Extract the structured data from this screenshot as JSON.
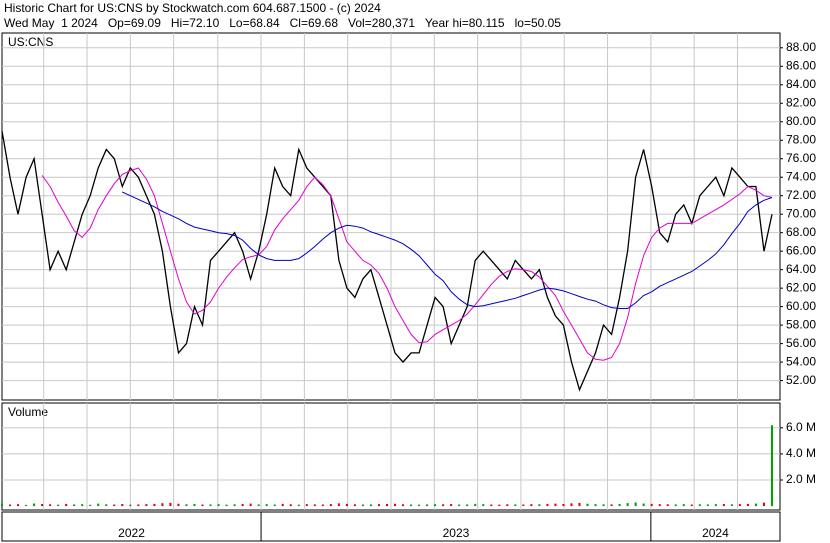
{
  "header": {
    "line1": "Historic Chart for US:CNS by Stockwatch.com 604.687.1500 - (c) 2024",
    "line2": "Wed May  1 2024   Op=69.09   Hi=72.10   Lo=68.84   Cl=69.68   Vol=280,371   Year hi=80.115   lo=50.05"
  },
  "chart_data": [
    {
      "type": "line",
      "title": "US:CNS",
      "xlim": [
        0,
        97
      ],
      "xticks": [
        5.2,
        10.6,
        16,
        21.4,
        26.9,
        32.3,
        37.7,
        43.1,
        48.5,
        53.9,
        59.3,
        64.7,
        70.1,
        75.5,
        80.9,
        86.3,
        91.7
      ],
      "period_starts": [
        32.3,
        80.9
      ],
      "period_labels": [
        "2022",
        "2023",
        "2024"
      ],
      "ylim": [
        49.9,
        89.6
      ],
      "yticks": [
        {
          "value": 52,
          "label": "52.00"
        },
        {
          "value": 54,
          "label": "54.00"
        },
        {
          "value": 56,
          "label": "56.00"
        },
        {
          "value": 58,
          "label": "58.00"
        },
        {
          "value": 60,
          "label": "60.00"
        },
        {
          "value": 62,
          "label": "62.00"
        },
        {
          "value": 64,
          "label": "64.00"
        },
        {
          "value": 66,
          "label": "66.00"
        },
        {
          "value": 68,
          "label": "68.00"
        },
        {
          "value": 70,
          "label": "70.00"
        },
        {
          "value": 72,
          "label": "72.00"
        },
        {
          "value": 74,
          "label": "74.00"
        },
        {
          "value": 76,
          "label": "76.00"
        },
        {
          "value": 78,
          "label": "78.00"
        },
        {
          "value": 80,
          "label": "80.00"
        },
        {
          "value": 82,
          "label": "82.00"
        },
        {
          "value": 84,
          "label": "84.00"
        },
        {
          "value": 86,
          "label": "86.00"
        },
        {
          "value": 88,
          "label": "88.00"
        }
      ],
      "grid": true,
      "series": [
        {
          "color": "#000000",
          "values": [
            79,
            74,
            70,
            74,
            76,
            70,
            64,
            66,
            64,
            67,
            70,
            72,
            75,
            77,
            76,
            73,
            75,
            74,
            72,
            70,
            66,
            60,
            55,
            56,
            60,
            58,
            65,
            66,
            67,
            68,
            66,
            63,
            66,
            70,
            75,
            73,
            72,
            77,
            75,
            74,
            73,
            72,
            65,
            62,
            61,
            63,
            64,
            61,
            58,
            55,
            54,
            55,
            55,
            58,
            61,
            60,
            56,
            58,
            60,
            65,
            66,
            65,
            64,
            63,
            65,
            64,
            63,
            64,
            61,
            59,
            58,
            54,
            51,
            53,
            55,
            58,
            57,
            61,
            66,
            74,
            77,
            73,
            68,
            67,
            70,
            71,
            69,
            72,
            73,
            74,
            72,
            75,
            74,
            73,
            73,
            66,
            70
          ]
        },
        {
          "color": "#e000d0",
          "values": [
            null,
            null,
            null,
            null,
            null,
            74.2,
            73,
            71.3,
            69.8,
            68.2,
            67.5,
            68.5,
            70.5,
            72,
            73.3,
            74.3,
            74.7,
            75,
            73.8,
            72,
            69,
            66,
            63,
            60.5,
            59.2,
            59.6,
            60.5,
            62,
            63.2,
            64.2,
            65.1,
            65.4,
            65.6,
            66.5,
            68.3,
            69.5,
            70.5,
            71.5,
            73,
            74,
            73.2,
            72,
            69.5,
            67,
            66,
            65,
            64.5,
            63.6,
            62,
            60,
            58.5,
            57,
            56.1,
            56.2,
            57,
            57.5,
            58,
            58.5,
            59.2,
            60.2,
            61.3,
            62.4,
            63.3,
            63.8,
            64.1,
            64,
            63.8,
            63.2,
            62.2,
            61.2,
            59.5,
            58,
            56.5,
            55,
            54.3,
            54.2,
            54.5,
            56,
            58.8,
            62.5,
            65.5,
            67.5,
            68.5,
            69,
            69,
            69,
            69,
            69.5,
            70,
            70.5,
            71,
            71.6,
            72.2,
            73,
            72.6,
            72,
            71.8
          ]
        },
        {
          "color": "#0000c0",
          "values": [
            null,
            null,
            null,
            null,
            null,
            null,
            null,
            null,
            null,
            null,
            null,
            null,
            null,
            null,
            null,
            72.4,
            72,
            71.6,
            71.2,
            70.8,
            70.3,
            69.9,
            69.5,
            69,
            68.6,
            68.4,
            68.2,
            68,
            67.9,
            67.7,
            67.2,
            66.3,
            65.6,
            65.2,
            65,
            65,
            65,
            65.2,
            65.8,
            66.5,
            67.3,
            68,
            68.5,
            68.8,
            68.7,
            68.5,
            68.1,
            67.8,
            67.5,
            67.2,
            66.8,
            66.2,
            65.5,
            64.5,
            63.5,
            62.8,
            61.6,
            60.8,
            60.2,
            60,
            60.1,
            60.3,
            60.5,
            60.7,
            60.9,
            61.2,
            61.5,
            61.8,
            62,
            61.9,
            61.7,
            61.4,
            61.1,
            60.8,
            60.6,
            60.2,
            59.9,
            59.8,
            59.8,
            60.4,
            61.2,
            61.6,
            62.2,
            62.6,
            63,
            63.4,
            63.8,
            64.4,
            65,
            65.7,
            66.7,
            67.9,
            69,
            70.3,
            71,
            71.5,
            71.8
          ]
        }
      ]
    },
    {
      "type": "bar",
      "title": "Volume",
      "up_color": "#00a000",
      "down_color": "#e00000",
      "ylim": [
        -300000,
        7900000
      ],
      "yticks": [
        {
          "value": 2000000,
          "label": "2.0 M"
        },
        {
          "value": 4000000,
          "label": "4.0 M"
        },
        {
          "value": 6000000,
          "label": "6.0 M"
        }
      ],
      "values": [
        180000,
        120000,
        150000,
        90000,
        200000,
        160000,
        140000,
        110000,
        170000,
        130000,
        150000,
        100000,
        190000,
        140000,
        120000,
        160000,
        110000,
        130000,
        150000,
        170000,
        220000,
        250000,
        180000,
        140000,
        160000,
        120000,
        130000,
        150000,
        110000,
        140000,
        160000,
        190000,
        130000,
        150000,
        120000,
        170000,
        140000,
        110000,
        150000,
        130000,
        120000,
        160000,
        210000,
        170000,
        140000,
        120000,
        130000,
        150000,
        160000,
        180000,
        140000,
        120000,
        110000,
        130000,
        150000,
        140000,
        160000,
        120000,
        130000,
        170000,
        150000,
        120000,
        110000,
        140000,
        130000,
        120000,
        150000,
        140000,
        170000,
        190000,
        160000,
        210000,
        240000,
        180000,
        150000,
        140000,
        130000,
        160000,
        230000,
        280000,
        200000,
        170000,
        150000,
        140000,
        130000,
        150000,
        120000,
        140000,
        130000,
        150000,
        160000,
        140000,
        150000,
        170000,
        190000,
        260000,
        6200000
      ]
    }
  ]
}
